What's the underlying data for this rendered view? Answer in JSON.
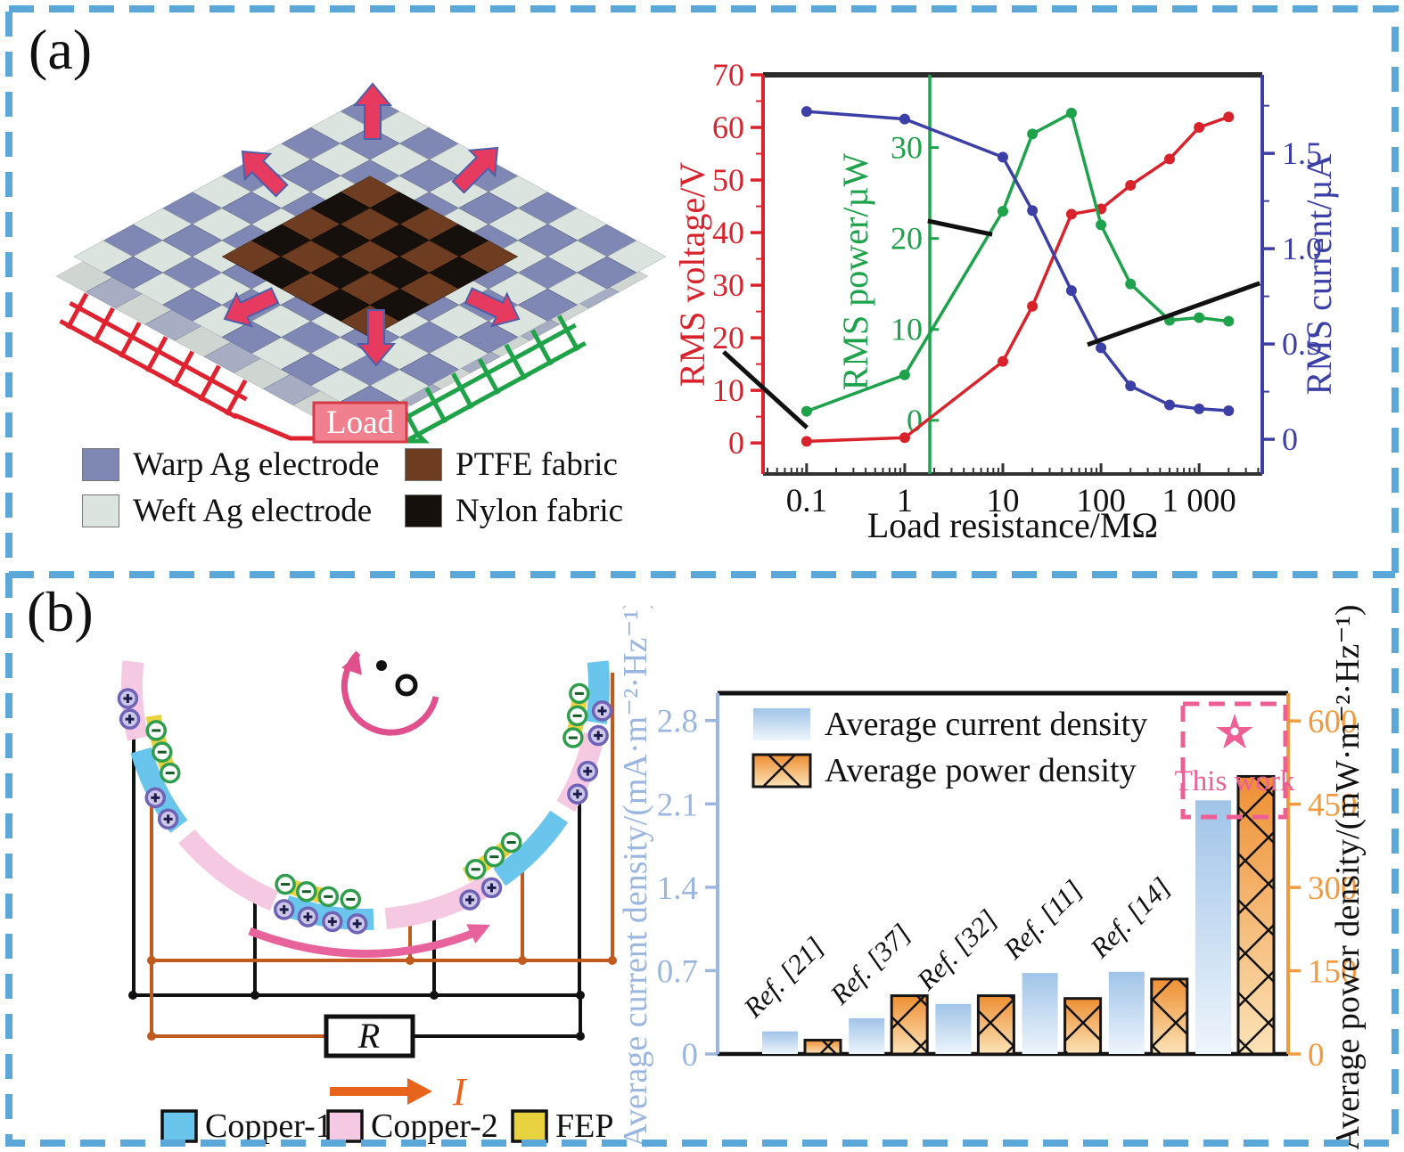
{
  "figure": {
    "border_color": "#5ba7d8"
  },
  "panel_a": {
    "label": "(a)",
    "illustration": {
      "load_label": "Load",
      "legend": [
        {
          "label": "Warp Ag electrode",
          "color": "#7f88b4"
        },
        {
          "label": "PTFE fabric",
          "color": "#6e3c21"
        },
        {
          "label": "Weft Ag electrode",
          "color": "#dce4e0"
        },
        {
          "label": "Nylon fabric",
          "color": "#16100c"
        }
      ]
    }
  },
  "panel_b": {
    "label": "(b)",
    "diagram": {
      "resistor_label": "R",
      "current_label": "I",
      "legend": [
        {
          "label": "Copper-1",
          "color": "#69c5ec"
        },
        {
          "label": "Copper-2",
          "color": "#f5c9e2"
        },
        {
          "label": "FEP",
          "color": "#e9d23f"
        }
      ]
    }
  },
  "chart_data": [
    {
      "type": "line",
      "xlabel": "Load resistance/MΩ",
      "x_scale": "log",
      "xlim": [
        0.036,
        4400
      ],
      "x_ticks": [
        0.1,
        1,
        10,
        100,
        1000
      ],
      "x_tick_labels": [
        "0.1",
        "1",
        "10",
        "100",
        "1 000"
      ],
      "x": [
        0.1,
        1,
        10,
        20,
        50,
        100,
        200,
        500,
        1000,
        2000
      ],
      "axes": {
        "voltage": {
          "label": "RMS voltage/V",
          "color": "#d8232d",
          "ticks": [
            0,
            10,
            20,
            30,
            40,
            50,
            60,
            70
          ],
          "tick_labels": [
            "0",
            "10",
            "20",
            "30",
            "40",
            "50",
            "60",
            "70"
          ],
          "range_at_plot": [
            -5.9,
            70
          ]
        },
        "power": {
          "label": "RMS power/µW",
          "color": "#1ea24b",
          "ticks": [
            0,
            10,
            20,
            30
          ],
          "tick_labels": [
            "0",
            "10",
            "20",
            "30"
          ],
          "range_at_plot": [
            -5.9,
            38
          ],
          "axis_x": 1.8
        },
        "current": {
          "label": "RMS current/µA",
          "color": "#3b3fa6",
          "ticks": [
            0,
            0.5,
            1,
            1.5
          ],
          "tick_labels": [
            "0",
            "0.5",
            "1.0",
            "1.5"
          ],
          "range_at_plot": [
            -0.182,
            1.912
          ]
        }
      },
      "series": [
        {
          "name": "RMS voltage",
          "axis": "voltage",
          "color": "#d8232d",
          "values": [
            0.3,
            1,
            15.5,
            26,
            43.5,
            44.5,
            49,
            54,
            60,
            62
          ]
        },
        {
          "name": "RMS power",
          "axis": "power",
          "color": "#1ea24b",
          "values": [
            1,
            5,
            23,
            31.5,
            33.8,
            21.5,
            15,
            11,
            11.3,
            10.9
          ]
        },
        {
          "name": "RMS current",
          "axis": "current",
          "color": "#3b3fa6",
          "values": [
            1.72,
            1.68,
            1.48,
            1.2,
            0.78,
            0.48,
            0.28,
            0.18,
            0.16,
            0.15
          ]
        }
      ],
      "annotation_lines": [
        {
          "from": [
            -0.079,
            0.694
          ],
          "to": [
            0.088,
            0.884
          ]
        },
        {
          "from": [
            0.33,
            0.366
          ],
          "to": [
            0.459,
            0.4
          ]
        },
        {
          "from": [
            0.65,
            0.676
          ],
          "to": [
            0.995,
            0.522
          ]
        }
      ],
      "grid": false,
      "legend_position": "none"
    },
    {
      "type": "bar",
      "categories": [
        "Ref. [21]",
        "Ref. [37]",
        "Ref. [32]",
        "Ref. [11]",
        "Ref. [14]",
        "This work"
      ],
      "series": [
        {
          "name": "Average current density",
          "axis": "current",
          "values": [
            0.19,
            0.3,
            0.42,
            0.68,
            0.69,
            2.13
          ]
        },
        {
          "name": "Average power density",
          "axis": "power",
          "values": [
            25,
            105,
            105,
            100,
            135,
            500
          ]
        }
      ],
      "axes": {
        "current": {
          "label": "Average current density/(mA·m⁻²·Hz⁻¹)",
          "color": "#9cb7df",
          "ticks": [
            0,
            0.7,
            1.4,
            2.1,
            2.8
          ],
          "tick_labels": [
            "0",
            "0.7",
            "1.4",
            "2.1",
            "2.8"
          ],
          "ylim": [
            0,
            3.03
          ]
        },
        "power": {
          "label": "Average power density/(mW·m⁻²·Hz⁻¹)",
          "color": "#f29a3f",
          "ticks": [
            0,
            150,
            300,
            450,
            600
          ],
          "tick_labels": [
            "0",
            "150",
            "300",
            "450",
            "600"
          ],
          "ylim": [
            0,
            650
          ]
        }
      },
      "legend": [
        "Average current density",
        "Average power density"
      ],
      "highlight": {
        "label": "This work",
        "star_icon": "★",
        "color": "#ee5f96",
        "category_index": 5
      },
      "grid": false,
      "legend_position": "upper-left"
    }
  ]
}
